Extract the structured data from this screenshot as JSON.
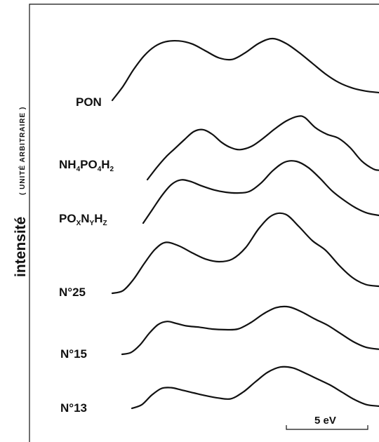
{
  "chart_data": {
    "type": "line",
    "title": "",
    "ylabel": "intensité",
    "ylabel_unit": "( UNITÉ ARBITRAIRE )",
    "xlabel": "",
    "scale_bar": {
      "label": "5 eV",
      "value": 5,
      "unit": "eV"
    },
    "xlim": [
      0,
      20
    ],
    "grid": false,
    "legend": "none",
    "series": [
      {
        "name": "PON",
        "label_parts": [
          [
            "PON",
            ""
          ]
        ],
        "x": [
          0,
          0.8,
          1.6,
          2.4,
          3.2,
          4.0,
          5.0,
          6.0,
          7.0,
          8.0,
          9.0,
          10.0,
          11.0,
          12.0,
          13.0,
          14.0,
          15.0,
          16.0,
          17.0,
          18.0,
          19.0,
          20.0
        ],
        "y": [
          0,
          1.8,
          4.0,
          5.8,
          7.0,
          7.6,
          7.7,
          7.3,
          6.4,
          5.5,
          5.3,
          6.2,
          7.4,
          8.0,
          7.4,
          6.2,
          4.8,
          3.4,
          2.3,
          1.6,
          1.2,
          1.0
        ]
      },
      {
        "name": "NH4PO4H2",
        "label_parts": [
          [
            "NH",
            ""
          ],
          [
            "4",
            "sub"
          ],
          [
            "PO",
            ""
          ],
          [
            "4",
            "sub"
          ],
          [
            "H",
            ""
          ],
          [
            "2",
            "sub"
          ]
        ],
        "x": [
          0,
          0.8,
          1.6,
          2.4,
          3.2,
          4.0,
          4.8,
          5.6,
          6.4,
          7.2,
          8.0,
          9.0,
          10.0,
          11.0,
          12.0,
          13.0,
          13.6,
          14.5,
          15.5,
          16.5,
          17.5,
          18.5,
          19.5,
          20.0
        ],
        "y": [
          0,
          1.8,
          3.4,
          4.7,
          6.0,
          7.2,
          7.5,
          6.8,
          5.6,
          4.8,
          4.5,
          5.0,
          6.2,
          7.6,
          8.8,
          9.5,
          9.3,
          7.8,
          6.8,
          6.2,
          4.8,
          2.8,
          1.6,
          1.4
        ]
      },
      {
        "name": "POxNyHz",
        "label_parts": [
          [
            "PO",
            ""
          ],
          [
            "X",
            "sub"
          ],
          [
            "N",
            ""
          ],
          [
            "Y",
            "sub"
          ],
          [
            "H",
            ""
          ],
          [
            "Z",
            "sub"
          ]
        ],
        "x": [
          0,
          0.8,
          1.6,
          2.4,
          3.2,
          4.0,
          5.0,
          6.0,
          7.0,
          8.0,
          9.0,
          10.0,
          11.0,
          12.0,
          13.0,
          14.0,
          15.0,
          16.0,
          17.0,
          18.0,
          19.0,
          20.0
        ],
        "y": [
          0,
          1.8,
          3.6,
          5.0,
          5.6,
          5.4,
          4.8,
          4.3,
          4.0,
          3.9,
          4.1,
          5.2,
          6.8,
          7.9,
          8.0,
          7.2,
          5.8,
          4.2,
          3.0,
          2.0,
          1.3,
          1.0
        ]
      },
      {
        "name": "N°25",
        "label_parts": [
          [
            "N°25",
            ""
          ]
        ],
        "x": [
          0,
          0.8,
          1.6,
          2.4,
          3.2,
          4.0,
          5.0,
          6.0,
          7.0,
          8.0,
          9.0,
          10.0,
          11.0,
          12.0,
          13.0,
          14.0,
          15.0,
          16.0,
          17.0,
          18.0,
          19.0,
          20.0
        ],
        "y": [
          0,
          0.3,
          1.6,
          3.4,
          5.0,
          5.8,
          5.4,
          4.6,
          3.9,
          3.6,
          3.9,
          5.2,
          7.4,
          8.9,
          9.0,
          7.6,
          6.0,
          4.9,
          3.2,
          1.8,
          1.0,
          0.8
        ]
      },
      {
        "name": "N°15",
        "label_parts": [
          [
            "N°15",
            ""
          ]
        ],
        "x": [
          0,
          0.7,
          1.4,
          2.1,
          2.8,
          3.5,
          4.2,
          5.0,
          6.0,
          7.0,
          8.0,
          9.0,
          10.0,
          11.0,
          12.0,
          13.0,
          14.0,
          15.0,
          16.0,
          17.0,
          18.0,
          19.0,
          20.0
        ],
        "y": [
          0,
          0.3,
          1.5,
          3.3,
          4.7,
          5.2,
          4.9,
          4.5,
          4.3,
          4.0,
          3.9,
          4.0,
          5.0,
          6.4,
          7.4,
          7.5,
          6.7,
          5.6,
          4.6,
          3.3,
          2.0,
          1.1,
          0.8
        ]
      },
      {
        "name": "N°13",
        "label_parts": [
          [
            "N°13",
            ""
          ]
        ],
        "x": [
          0,
          0.8,
          1.6,
          2.4,
          3.2,
          4.0,
          5.0,
          6.0,
          7.0,
          8.0,
          9.0,
          10.0,
          11.0,
          12.0,
          13.0,
          14.0,
          15.0,
          16.0,
          17.0,
          18.0,
          19.0,
          20.0
        ],
        "y": [
          0,
          0.5,
          1.8,
          2.7,
          2.8,
          2.5,
          2.1,
          1.7,
          1.4,
          1.3,
          2.2,
          3.6,
          4.9,
          5.6,
          5.5,
          4.8,
          4.0,
          3.2,
          2.2,
          1.2,
          0.5,
          0.3
        ]
      }
    ]
  }
}
